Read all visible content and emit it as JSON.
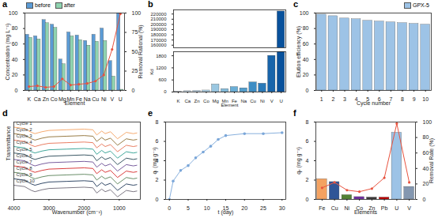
{
  "chart_data": [
    {
      "title": "a",
      "type": "bar",
      "categories": [
        "K",
        "Ca",
        "Zn",
        "Co",
        "Mg",
        "Mn",
        "Fe",
        "Na",
        "Cu",
        "Ni",
        "V",
        "U"
      ],
      "series": [
        {
          "name": "before",
          "color": "#5b9bd5",
          "values": [
            72,
            70,
            91,
            85,
            40,
            75,
            71,
            64,
            72,
            80,
            38,
            100
          ]
        },
        {
          "name": "after",
          "color": "#8fd3b0",
          "values": [
            68,
            66,
            87,
            81,
            34,
            70,
            65,
            58,
            63,
            64,
            18,
            1
          ]
        },
        {
          "type": "line",
          "axis": "y2",
          "color": "#e8533f",
          "marker": "circle",
          "values": [
            5,
            6,
            4,
            5,
            15,
            7,
            8,
            9,
            12,
            20,
            53,
            99
          ]
        }
      ],
      "xlabel": "Element",
      "ylabel": "Concentration (mg L⁻¹)",
      "y2label": "Removal Rational (%)",
      "ylim": [
        0,
        100
      ],
      "yticks": [
        0,
        20,
        40,
        60,
        80,
        100
      ],
      "y2lim": [
        0,
        100
      ],
      "y2ticks": [
        0,
        25,
        50,
        75,
        100
      ],
      "legend": "upper left"
    },
    {
      "title": "b",
      "type": "bar",
      "categories": [
        "K",
        "Ca",
        "Zn",
        "Co",
        "Mg",
        "Mn",
        "Fe",
        "Na",
        "Cu",
        "Ni",
        "V",
        "U"
      ],
      "values": [
        30,
        45,
        60,
        80,
        380,
        150,
        250,
        190,
        480,
        420,
        1800,
        225000
      ],
      "colors": [
        "#deebf7",
        "#d0e3f3",
        "#c2dbef",
        "#b0d2e8",
        "#9ac7e1",
        "#84bcdb",
        "#6aaed6",
        "#539ecd",
        "#3d8dc4",
        "#2a7ab9",
        "#1764ab",
        "#08519c"
      ],
      "xlabel": "Element",
      "ylabel": "Kd",
      "ylim": [
        [
          0,
          2000
        ],
        [
          155000,
          228000
        ]
      ],
      "yticks": [
        0,
        600,
        1200,
        1800,
        160000,
        170000,
        180000,
        190000,
        200000,
        210000,
        220000
      ]
    },
    {
      "title": "c",
      "type": "bar",
      "categories": [
        "1",
        "2",
        "3",
        "4",
        "5",
        "6",
        "7",
        "8",
        "9",
        "10"
      ],
      "series": [
        {
          "name": "GPX-5",
          "color": "#9dc3e6",
          "values": [
            98,
            96,
            93,
            92,
            90,
            89,
            88,
            87,
            86,
            85
          ]
        }
      ],
      "xlabel": "Cycle number",
      "ylabel": "Elution efficiency (%)",
      "ylim": [
        0,
        100
      ],
      "yticks": [
        0,
        20,
        40,
        60,
        80,
        100
      ],
      "legend": "upper right"
    },
    {
      "title": "d",
      "type": "line",
      "x": [
        4000,
        3700,
        3500,
        3400,
        3200,
        3000,
        2500,
        2000,
        1750,
        1640,
        1500,
        1400,
        1250,
        1050,
        800,
        600,
        500
      ],
      "series": [
        {
          "name": "Cycle 1",
          "color": "#f4a261",
          "values": [
            10,
            9.8,
            9.2,
            9,
            9.3,
            9.5,
            9.6,
            9.7,
            9.6,
            8.8,
            9.4,
            9,
            9.3,
            8.2,
            9.2,
            9,
            9.1
          ]
        },
        {
          "name": "Cycle 2",
          "color": "#8c6d31",
          "values": [
            9,
            8.8,
            8.2,
            8,
            8.3,
            8.5,
            8.6,
            8.7,
            8.6,
            7.8,
            8.4,
            8,
            8.3,
            7.2,
            8.2,
            8,
            8.1
          ]
        },
        {
          "name": "Cycle 3",
          "color": "#e76f51",
          "values": [
            8,
            7.8,
            7.2,
            7,
            7.3,
            7.5,
            7.6,
            7.7,
            7.6,
            6.8,
            7.4,
            7,
            7.3,
            6.2,
            7.2,
            7,
            7.1
          ]
        },
        {
          "name": "Cycle 4",
          "color": "#2a9d8f",
          "values": [
            7,
            6.8,
            6.2,
            6,
            6.3,
            6.5,
            6.6,
            6.7,
            6.6,
            5.8,
            6.4,
            6,
            6.3,
            5.2,
            6.2,
            6,
            6.1
          ]
        },
        {
          "name": "Cycle 5",
          "color": "#264653",
          "values": [
            6,
            5.8,
            5.2,
            5,
            5.3,
            5.5,
            5.6,
            5.7,
            5.6,
            4.8,
            5.4,
            5,
            5.3,
            4.2,
            5.2,
            5,
            5.1
          ]
        },
        {
          "name": "Cycle 6",
          "color": "#6a4c93",
          "values": [
            5,
            4.8,
            4.2,
            4,
            4.3,
            4.5,
            4.6,
            4.7,
            4.6,
            3.8,
            4.4,
            4,
            4.3,
            3.2,
            4.2,
            4,
            4.1
          ]
        },
        {
          "name": "Cycle 7",
          "color": "#d62828",
          "values": [
            4,
            3.8,
            3.2,
            3,
            3.3,
            3.5,
            3.6,
            3.7,
            3.6,
            2.8,
            3.4,
            3,
            3.3,
            2.2,
            3.2,
            3,
            3.1
          ]
        },
        {
          "name": "Cycle 8",
          "color": "#588157",
          "values": [
            3,
            2.8,
            2.2,
            2,
            2.3,
            2.5,
            2.6,
            2.7,
            2.6,
            1.8,
            2.4,
            2,
            2.3,
            1.2,
            2.2,
            2,
            2.1
          ]
        },
        {
          "name": "Cycle 9",
          "color": "#1d3557",
          "values": [
            2,
            1.8,
            1.2,
            1,
            1.3,
            1.5,
            1.6,
            1.7,
            1.6,
            0.8,
            1.4,
            1,
            1.3,
            0.2,
            1.2,
            1,
            1.1
          ]
        },
        {
          "name": "Cycle 10",
          "color": "#6d6875",
          "values": [
            1,
            0.8,
            0.2,
            0,
            0.3,
            0.5,
            0.6,
            0.7,
            0.6,
            -0.2,
            0.4,
            0,
            0.3,
            -0.8,
            0.2,
            0,
            0.1
          ]
        }
      ],
      "xlabel": "Wavenumber (cm⁻¹)",
      "ylabel": "Transmittance",
      "xlim": [
        4000,
        400
      ],
      "xticks": [
        4000,
        3000,
        2000,
        1000
      ],
      "ylim": [
        -1.2,
        10.8
      ],
      "tick_labels": "x"
    },
    {
      "title": "e",
      "type": "line",
      "x": [
        0,
        1,
        3,
        5,
        7,
        9,
        11,
        13,
        15,
        20,
        25,
        30
      ],
      "values": [
        0,
        1.9,
        3.0,
        3.5,
        4.3,
        4.9,
        5.5,
        6.2,
        6.6,
        6.8,
        6.8,
        6.9
      ],
      "color": "#7ba7d9",
      "marker": "circle",
      "xlabel": "t (day)",
      "ylabel": "qₜ (mg g⁻¹)",
      "xlim": [
        -1,
        31
      ],
      "xticks": [
        0,
        5,
        10,
        15,
        20,
        25,
        30
      ],
      "ylim": [
        0,
        8
      ],
      "yticks": [
        0,
        2,
        4,
        6,
        8
      ]
    },
    {
      "title": "f",
      "type": "bar",
      "categories": [
        "Fe",
        "Cu",
        "Ni",
        "Co",
        "Zn",
        "Pb",
        "U",
        "V"
      ],
      "series": [
        {
          "values": [
            2.1,
            1.8,
            0.45,
            0.25,
            0.2,
            0.2,
            6.9,
            1.3
          ],
          "colors": [
            "#f4a261",
            "#2f5597",
            "#548235",
            "#7030a0",
            "#3b3838",
            "#c00000",
            "#9dc3e6",
            "#8497b0"
          ]
        },
        {
          "type": "line",
          "axis": "y2",
          "color": "#e8533f",
          "marker": "circle",
          "values": [
            15,
            22,
            12,
            10,
            14,
            28,
            98,
            22
          ]
        }
      ],
      "xlabel": "Elements",
      "ylabel": "qₑ (mg g⁻¹)",
      "y2label": "Removal Rate (%)",
      "ylim": [
        0,
        8
      ],
      "yticks": [
        0,
        2,
        4,
        6,
        8
      ],
      "y2lim": [
        0,
        100
      ],
      "y2ticks": [
        0,
        20,
        40,
        60,
        80,
        100
      ]
    }
  ]
}
